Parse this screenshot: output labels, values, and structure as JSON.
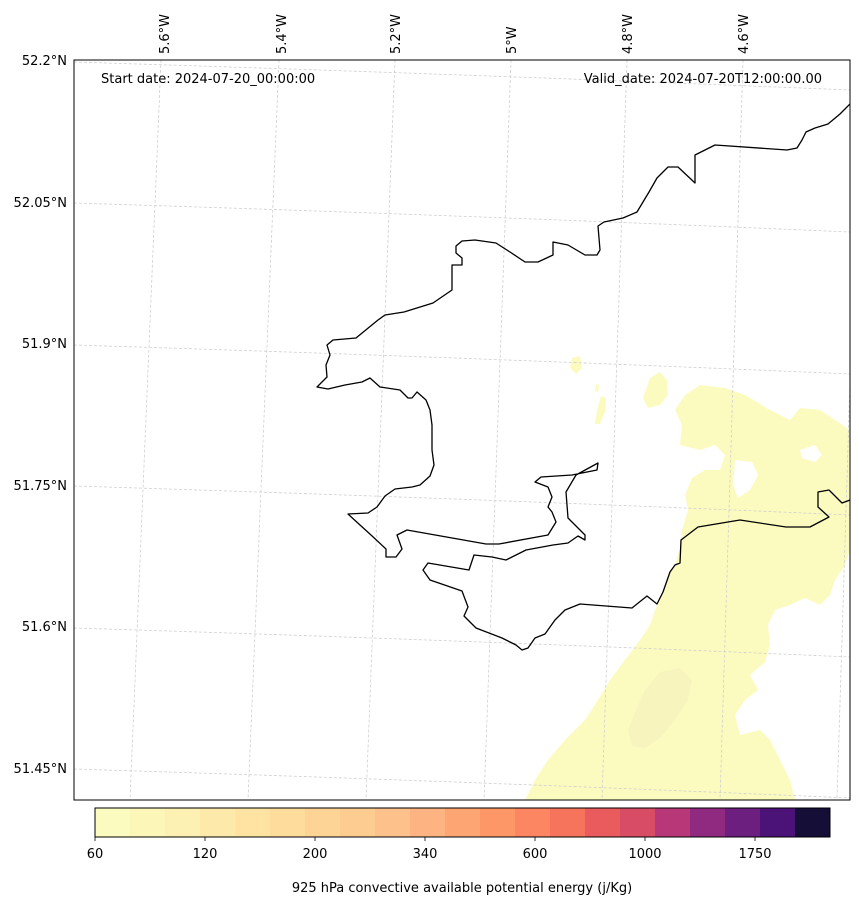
{
  "map": {
    "start_label": "Start date: 2024-07-20_00:00:00",
    "valid_label": "Valid_date: 2024-07-20T12:00:00.00",
    "lon_labels": [
      "5.6°W",
      "5.4°W",
      "5.2°W",
      "5°W",
      "4.8°W",
      "4.6°W"
    ],
    "lat_labels": [
      "52.2°N",
      "52.05°N",
      "51.9°N",
      "51.75°N",
      "51.6°N",
      "51.45°N"
    ]
  },
  "colorbar": {
    "title": "925 hPa convective available potential energy (j/Kg)",
    "tick_labels": [
      "60",
      "120",
      "200",
      "340",
      "600",
      "1000",
      "1750"
    ],
    "colors": [
      "#fcfbbf",
      "#fcf6b8",
      "#fcf0b2",
      "#fde9aa",
      "#fee3a2",
      "#fedc9b",
      "#fed496",
      "#fdcc91",
      "#fdc28b",
      "#feb482",
      "#fea673",
      "#fe9768",
      "#fb8661",
      "#f6735c",
      "#ea5b5e",
      "#d94c65",
      "#b73779",
      "#902a81",
      "#6d1f80",
      "#4b1378",
      "#150e37"
    ]
  },
  "colors": {
    "cape_low": "#fcfbbf",
    "cape_patch": "#f8f4bd",
    "coastline": "#000000",
    "gridline": "#cfcfcf"
  }
}
